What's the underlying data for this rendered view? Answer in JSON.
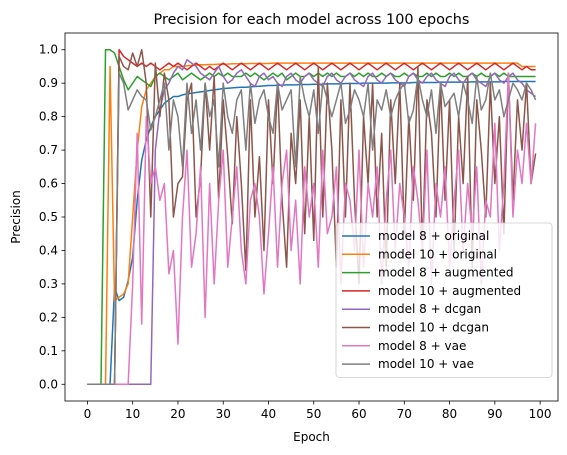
{
  "chart_data": {
    "type": "line",
    "title": "Precision for each model across 100 epochs",
    "xlabel": "Epoch",
    "ylabel": "Precision",
    "xlim": [
      -4.95,
      103.95
    ],
    "ylim": [
      -0.05,
      1.05
    ],
    "xticks": [
      0,
      10,
      20,
      30,
      40,
      50,
      60,
      70,
      80,
      90,
      100
    ],
    "yticks": [
      0.0,
      0.1,
      0.2,
      0.3,
      0.4,
      0.5,
      0.6,
      0.7,
      0.8,
      0.9,
      1.0
    ],
    "grid": false,
    "legend_position": "lower-right",
    "series": [
      {
        "name": "model 8 + original",
        "color": "#1f77b4",
        "values": [
          0,
          0,
          0,
          0,
          0,
          0,
          0.29,
          0.25,
          0.26,
          0.31,
          0.38,
          0.55,
          0.67,
          0.73,
          0.77,
          0.8,
          0.82,
          0.84,
          0.85,
          0.86,
          0.86,
          0.865,
          0.868,
          0.87,
          0.872,
          0.874,
          0.876,
          0.878,
          0.88,
          0.882,
          0.884,
          0.885,
          0.886,
          0.887,
          0.888,
          0.888,
          0.889,
          0.89,
          0.891,
          0.892,
          0.893,
          0.893,
          0.894,
          0.894,
          0.895,
          0.895,
          0.895,
          0.896,
          0.896,
          0.896,
          0.897,
          0.897,
          0.897,
          0.898,
          0.898,
          0.898,
          0.898,
          0.899,
          0.899,
          0.899,
          0.899,
          0.9,
          0.9,
          0.9,
          0.9,
          0.9,
          0.9,
          0.901,
          0.901,
          0.901,
          0.901,
          0.901,
          0.902,
          0.902,
          0.902,
          0.902,
          0.902,
          0.902,
          0.903,
          0.903,
          0.903,
          0.903,
          0.903,
          0.903,
          0.903,
          0.904,
          0.904,
          0.904,
          0.904,
          0.904,
          0.904,
          0.904,
          0.905,
          0.905,
          0.905,
          0.905,
          0.905,
          0.905,
          0.905,
          0.905
        ]
      },
      {
        "name": "model 10 + original",
        "color": "#ff7f0e",
        "values": [
          0,
          0,
          0,
          0,
          0,
          0.95,
          0.25,
          0.26,
          0.27,
          0.3,
          0.5,
          0.7,
          0.83,
          0.88,
          0.9,
          0.92,
          0.93,
          0.94,
          0.94,
          0.95,
          0.95,
          0.95,
          0.952,
          0.953,
          0.954,
          0.955,
          0.955,
          0.956,
          0.956,
          0.957,
          0.957,
          0.957,
          0.958,
          0.958,
          0.958,
          0.958,
          0.959,
          0.959,
          0.959,
          0.959,
          0.959,
          0.96,
          0.96,
          0.96,
          0.96,
          0.96,
          0.96,
          0.96,
          0.96,
          0.96,
          0.96,
          0.96,
          0.96,
          0.96,
          0.96,
          0.96,
          0.96,
          0.96,
          0.96,
          0.96,
          0.96,
          0.96,
          0.96,
          0.96,
          0.96,
          0.96,
          0.96,
          0.96,
          0.96,
          0.96,
          0.96,
          0.96,
          0.96,
          0.96,
          0.96,
          0.96,
          0.96,
          0.96,
          0.96,
          0.96,
          0.96,
          0.96,
          0.96,
          0.96,
          0.96,
          0.96,
          0.96,
          0.96,
          0.96,
          0.96,
          0.96,
          0.96,
          0.96,
          0.96,
          0.96,
          0.96,
          0.95,
          0.95,
          0.95,
          0.95
        ]
      },
      {
        "name": "model 8 + augmented",
        "color": "#2ca02c",
        "values": [
          0,
          0,
          0,
          0,
          1.0,
          1.0,
          0.99,
          0.95,
          0.91,
          0.88,
          0.9,
          0.92,
          0.91,
          0.9,
          0.89,
          0.92,
          0.93,
          0.92,
          0.91,
          0.92,
          0.93,
          0.91,
          0.92,
          0.93,
          0.92,
          0.91,
          0.92,
          0.93,
          0.92,
          0.93,
          0.92,
          0.93,
          0.92,
          0.92,
          0.92,
          0.93,
          0.92,
          0.93,
          0.92,
          0.91,
          0.92,
          0.93,
          0.92,
          0.93,
          0.91,
          0.92,
          0.93,
          0.92,
          0.92,
          0.93,
          0.92,
          0.93,
          0.92,
          0.93,
          0.92,
          0.93,
          0.92,
          0.92,
          0.93,
          0.92,
          0.93,
          0.92,
          0.93,
          0.92,
          0.92,
          0.93,
          0.92,
          0.93,
          0.92,
          0.92,
          0.93,
          0.92,
          0.93,
          0.92,
          0.92,
          0.93,
          0.92,
          0.93,
          0.92,
          0.92,
          0.93,
          0.92,
          0.93,
          0.92,
          0.92,
          0.93,
          0.92,
          0.93,
          0.92,
          0.92,
          0.93,
          0.92,
          0.93,
          0.92,
          0.92,
          0.92,
          0.92,
          0.92,
          0.92,
          0.92
        ]
      },
      {
        "name": "model 10 + augmented",
        "color": "#d62728",
        "values": [
          0,
          0,
          0,
          0,
          0,
          0,
          0,
          1.0,
          0.98,
          0.97,
          0.96,
          0.95,
          0.96,
          0.95,
          0.96,
          0.95,
          0.94,
          0.95,
          0.96,
          0.95,
          0.96,
          0.95,
          0.94,
          0.95,
          0.96,
          0.95,
          0.94,
          0.95,
          0.94,
          0.95,
          0.96,
          0.95,
          0.94,
          0.95,
          0.96,
          0.95,
          0.94,
          0.95,
          0.96,
          0.95,
          0.94,
          0.95,
          0.96,
          0.95,
          0.94,
          0.95,
          0.96,
          0.95,
          0.94,
          0.95,
          0.96,
          0.95,
          0.94,
          0.95,
          0.96,
          0.95,
          0.94,
          0.95,
          0.96,
          0.95,
          0.94,
          0.95,
          0.96,
          0.95,
          0.94,
          0.95,
          0.96,
          0.95,
          0.94,
          0.95,
          0.96,
          0.95,
          0.94,
          0.95,
          0.96,
          0.95,
          0.94,
          0.95,
          0.96,
          0.95,
          0.94,
          0.95,
          0.96,
          0.95,
          0.94,
          0.95,
          0.96,
          0.95,
          0.94,
          0.95,
          0.96,
          0.95,
          0.94,
          0.95,
          0.96,
          0.95,
          0.94,
          0.95,
          0.94,
          0.94
        ]
      },
      {
        "name": "model 8 + dcgan",
        "color": "#9467bd",
        "values": [
          0,
          0,
          0,
          0,
          0,
          0,
          0,
          0,
          0,
          0,
          0,
          0,
          0,
          0,
          0,
          0.7,
          0.82,
          0.88,
          0.9,
          0.93,
          0.95,
          0.94,
          0.97,
          0.96,
          0.95,
          0.93,
          0.92,
          0.91,
          0.93,
          0.95,
          0.92,
          0.9,
          0.91,
          0.93,
          0.94,
          0.92,
          0.9,
          0.89,
          0.92,
          0.93,
          0.91,
          0.92,
          0.9,
          0.89,
          0.92,
          0.93,
          0.91,
          0.9,
          0.92,
          0.93,
          0.91,
          0.9,
          0.89,
          0.92,
          0.93,
          0.91,
          0.9,
          0.92,
          0.93,
          0.91,
          0.9,
          0.89,
          0.92,
          0.93,
          0.91,
          0.9,
          0.92,
          0.93,
          0.91,
          0.9,
          0.89,
          0.92,
          0.93,
          0.91,
          0.9,
          0.92,
          0.93,
          0.91,
          0.9,
          0.89,
          0.92,
          0.93,
          0.91,
          0.9,
          0.92,
          0.93,
          0.91,
          0.9,
          0.89,
          0.92,
          0.93,
          0.91,
          0.9,
          0.92,
          0.93,
          0.91,
          0.9,
          0.88,
          0.87,
          0.86
        ]
      },
      {
        "name": "model 10 + dcgan",
        "color": "#8c564b",
        "values": [
          0,
          0,
          0,
          0,
          0,
          0,
          0,
          0.98,
          0.95,
          0.94,
          0.99,
          0.95,
          1.0,
          0.9,
          0.5,
          0.96,
          0.8,
          0.93,
          0.85,
          0.5,
          0.6,
          0.62,
          0.85,
          0.9,
          0.5,
          0.62,
          0.9,
          0.7,
          0.92,
          0.55,
          0.85,
          0.68,
          0.48,
          0.8,
          0.6,
          0.34,
          0.85,
          0.5,
          0.68,
          0.4,
          0.85,
          0.6,
          0.9,
          0.55,
          0.35,
          0.75,
          0.6,
          0.85,
          0.45,
          0.8,
          0.43,
          0.95,
          0.5,
          0.9,
          0.7,
          0.35,
          0.85,
          0.5,
          0.9,
          0.55,
          0.3,
          0.8,
          0.6,
          0.9,
          0.5,
          0.75,
          0.35,
          0.85,
          0.6,
          0.9,
          0.45,
          0.8,
          0.55,
          0.95,
          0.4,
          0.85,
          0.75,
          0.5,
          0.9,
          0.55,
          0.85,
          0.4,
          0.8,
          0.6,
          0.92,
          0.35,
          0.85,
          0.7,
          0.5,
          0.9,
          0.6,
          0.8,
          0.45,
          0.93,
          0.55,
          0.85,
          0.7,
          0.9,
          0.6,
          0.69
        ]
      },
      {
        "name": "model 8 + vae",
        "color": "#e377c2",
        "values": [
          0,
          0,
          0,
          0,
          0,
          0,
          0,
          0,
          0,
          0,
          0.3,
          0.75,
          0.18,
          0.8,
          0.6,
          0.65,
          0.55,
          0.6,
          0.33,
          0.4,
          0.12,
          0.5,
          0.7,
          0.35,
          0.45,
          0.65,
          0.2,
          0.6,
          0.3,
          0.55,
          0.7,
          0.35,
          0.5,
          0.65,
          0.4,
          0.3,
          0.55,
          0.6,
          0.5,
          0.27,
          0.45,
          0.65,
          0.35,
          0.6,
          0.7,
          0.4,
          0.55,
          0.3,
          0.65,
          0.5,
          0.6,
          0.35,
          0.7,
          0.45,
          0.5,
          0.65,
          0.3,
          0.6,
          0.55,
          0.4,
          0.7,
          0.35,
          0.6,
          0.5,
          0.65,
          0.3,
          0.55,
          0.7,
          0.4,
          0.6,
          0.5,
          0.35,
          0.65,
          0.55,
          0.4,
          0.7,
          0.3,
          0.6,
          0.5,
          0.65,
          0.35,
          0.55,
          0.7,
          0.4,
          0.6,
          0.45,
          0.65,
          0.3,
          0.55,
          0.5,
          0.78,
          0.4,
          0.6,
          0.93,
          0.5,
          0.7,
          0.6,
          0.78,
          0.6,
          0.78
        ]
      },
      {
        "name": "model 10 + vae",
        "color": "#7f7f7f",
        "values": [
          0,
          0,
          0,
          0,
          0,
          0,
          0,
          0.93,
          0.9,
          0.82,
          0.85,
          0.88,
          0.86,
          0.85,
          0.76,
          0.8,
          0.85,
          0.9,
          0.7,
          0.85,
          0.8,
          0.65,
          0.9,
          0.75,
          0.85,
          0.7,
          0.9,
          0.8,
          0.85,
          0.65,
          0.9,
          0.8,
          0.75,
          0.85,
          0.88,
          0.7,
          0.9,
          0.78,
          0.85,
          0.88,
          0.8,
          0.75,
          0.9,
          0.82,
          0.85,
          0.88,
          0.65,
          0.92,
          0.85,
          0.8,
          0.88,
          0.75,
          0.9,
          0.85,
          0.8,
          0.85,
          0.9,
          0.78,
          0.82,
          0.88,
          0.85,
          0.8,
          0.9,
          0.7,
          0.85,
          0.82,
          0.88,
          0.8,
          0.85,
          0.88,
          0.9,
          0.78,
          0.82,
          0.92,
          0.85,
          0.8,
          0.88,
          0.75,
          0.9,
          0.83,
          0.85,
          0.87,
          0.8,
          0.9,
          0.85,
          0.78,
          0.92,
          0.82,
          0.85,
          0.93,
          0.85,
          0.88,
          0.8,
          0.85,
          0.9,
          0.88,
          0.85,
          0.9,
          0.88,
          0.85
        ]
      }
    ]
  }
}
